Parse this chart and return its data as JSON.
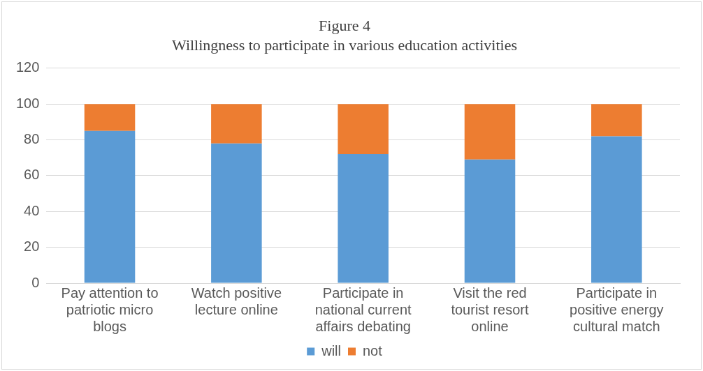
{
  "chart_data": {
    "type": "bar",
    "title": "Figure 4",
    "subtitle": "Willingness to participate in various education activities",
    "categories": [
      "Pay attention to patriotic micro blogs",
      "Watch positive lecture online",
      "Participate in national current affairs debating",
      "Visit the red tourist resort online",
      "Participate in positive energy cultural match"
    ],
    "series": [
      {
        "name": "will",
        "color": "#5b9bd5",
        "values": [
          85,
          78,
          72,
          69,
          82
        ]
      },
      {
        "name": "not",
        "color": "#ed7d31",
        "values": [
          15,
          22,
          28,
          31,
          18
        ]
      }
    ],
    "stacked": true,
    "ylim": [
      0,
      120
    ],
    "yticks": [
      0,
      20,
      40,
      60,
      80,
      100,
      120
    ],
    "grid": "y",
    "legend": "bottom"
  }
}
